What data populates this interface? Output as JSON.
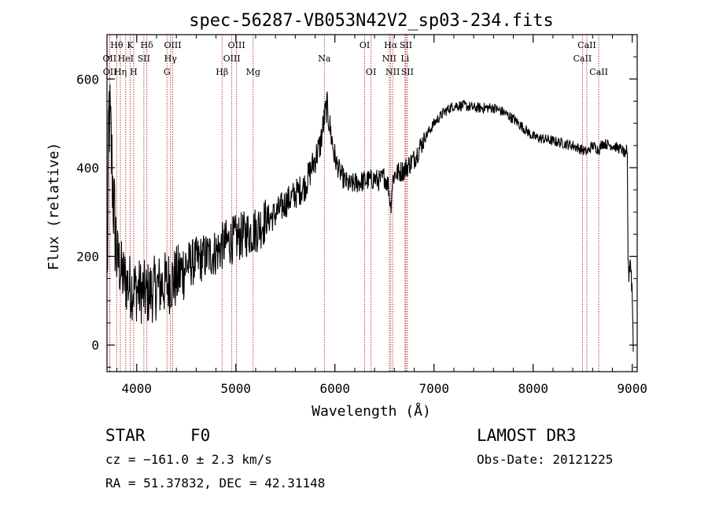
{
  "chart_data": {
    "type": "line",
    "title": "spec-56287-VB053N42V2_sp03-234.fits",
    "xlabel": "Wavelength (Å)",
    "ylabel": "Flux (relative)",
    "xlim": [
      3700,
      9050
    ],
    "ylim": [
      -60,
      700
    ],
    "xticks": [
      4000,
      5000,
      6000,
      7000,
      8000,
      9000
    ],
    "yticks": [
      0,
      200,
      400,
      600
    ],
    "spectrum_anchors": [
      [
        3700,
        80
      ],
      [
        3720,
        540
      ],
      [
        3745,
        430
      ],
      [
        3770,
        300
      ],
      [
        3800,
        200
      ],
      [
        3850,
        160
      ],
      [
        3900,
        140
      ],
      [
        3950,
        130
      ],
      [
        4000,
        125
      ],
      [
        4050,
        120
      ],
      [
        4100,
        115
      ],
      [
        4200,
        130
      ],
      [
        4300,
        140
      ],
      [
        4400,
        150
      ],
      [
        4500,
        180
      ],
      [
        4600,
        190
      ],
      [
        4700,
        200
      ],
      [
        4800,
        210
      ],
      [
        4900,
        230
      ],
      [
        5000,
        240
      ],
      [
        5100,
        250
      ],
      [
        5200,
        260
      ],
      [
        5300,
        280
      ],
      [
        5400,
        295
      ],
      [
        5500,
        320
      ],
      [
        5600,
        340
      ],
      [
        5700,
        360
      ],
      [
        5800,
        420
      ],
      [
        5850,
        450
      ],
      [
        5900,
        520
      ],
      [
        5920,
        540
      ],
      [
        5950,
        490
      ],
      [
        6000,
        420
      ],
      [
        6050,
        390
      ],
      [
        6100,
        370
      ],
      [
        6150,
        360
      ],
      [
        6200,
        365
      ],
      [
        6300,
        370
      ],
      [
        6400,
        375
      ],
      [
        6450,
        370
      ],
      [
        6500,
        380
      ],
      [
        6540,
        360
      ],
      [
        6563,
        310
      ],
      [
        6580,
        370
      ],
      [
        6600,
        385
      ],
      [
        6700,
        395
      ],
      [
        6800,
        420
      ],
      [
        6900,
        465
      ],
      [
        7000,
        500
      ],
      [
        7100,
        525
      ],
      [
        7200,
        540
      ],
      [
        7300,
        540
      ],
      [
        7400,
        535
      ],
      [
        7500,
        535
      ],
      [
        7600,
        535
      ],
      [
        7700,
        525
      ],
      [
        7800,
        510
      ],
      [
        7900,
        490
      ],
      [
        8000,
        470
      ],
      [
        8100,
        465
      ],
      [
        8200,
        460
      ],
      [
        8300,
        455
      ],
      [
        8400,
        450
      ],
      [
        8498,
        440
      ],
      [
        8542,
        435
      ],
      [
        8600,
        450
      ],
      [
        8662,
        440
      ],
      [
        8700,
        455
      ],
      [
        8800,
        450
      ],
      [
        8900,
        440
      ],
      [
        8950,
        420
      ],
      [
        8960,
        150
      ],
      [
        8980,
        200
      ],
      [
        9000,
        120
      ],
      [
        9010,
        -10
      ]
    ],
    "spectral_lines": [
      {
        "label": "OII",
        "wavelength": 3727,
        "row": 2
      },
      {
        "label": "OII",
        "wavelength": 3729,
        "row": 3
      },
      {
        "label": "Hθ",
        "wavelength": 3798,
        "row": 1
      },
      {
        "label": "Hη",
        "wavelength": 3835,
        "row": 3
      },
      {
        "label": "HeI",
        "wavelength": 3889,
        "row": 2
      },
      {
        "label": "K",
        "wavelength": 3934,
        "row": 1
      },
      {
        "label": "H",
        "wavelength": 3969,
        "row": 3
      },
      {
        "label": "SII",
        "wavelength": 4072,
        "row": 2
      },
      {
        "label": "Hδ",
        "wavelength": 4102,
        "row": 1
      },
      {
        "label": "G",
        "wavelength": 4305,
        "row": 3
      },
      {
        "label": "Hγ",
        "wavelength": 4341,
        "row": 2
      },
      {
        "label": "OIII",
        "wavelength": 4363,
        "row": 1
      },
      {
        "label": "Hβ",
        "wavelength": 4861,
        "row": 3
      },
      {
        "label": "OIII",
        "wavelength": 4959,
        "row": 2
      },
      {
        "label": "OIII",
        "wavelength": 5007,
        "row": 1
      },
      {
        "label": "Mg",
        "wavelength": 5175,
        "row": 3
      },
      {
        "label": "Na",
        "wavelength": 5894,
        "row": 2
      },
      {
        "label": "OI",
        "wavelength": 6300,
        "row": 1
      },
      {
        "label": "OI",
        "wavelength": 6364,
        "row": 3
      },
      {
        "label": "NII",
        "wavelength": 6548,
        "row": 2
      },
      {
        "label": "Hα",
        "wavelength": 6563,
        "row": 1
      },
      {
        "label": "NII",
        "wavelength": 6583,
        "row": 3
      },
      {
        "label": "Li",
        "wavelength": 6707,
        "row": 2
      },
      {
        "label": "SII",
        "wavelength": 6716,
        "row": 1
      },
      {
        "label": "SII",
        "wavelength": 6731,
        "row": 3
      },
      {
        "label": "CaII",
        "wavelength": 8498,
        "row": 2
      },
      {
        "label": "CaII",
        "wavelength": 8542,
        "row": 1
      },
      {
        "label": "CaII",
        "wavelength": 8662,
        "row": 3
      }
    ]
  },
  "info": {
    "class": "STAR",
    "subclass": "F0",
    "survey": "LAMOST DR3",
    "redshift": "cz = −161.0 ± 2.3 km/s",
    "obs_date": "Obs-Date: 20121225",
    "coords": "RA =  51.37832, DEC =  42.31148"
  },
  "colors": {
    "line_marker": "#b03030",
    "spectrum": "#000000"
  }
}
